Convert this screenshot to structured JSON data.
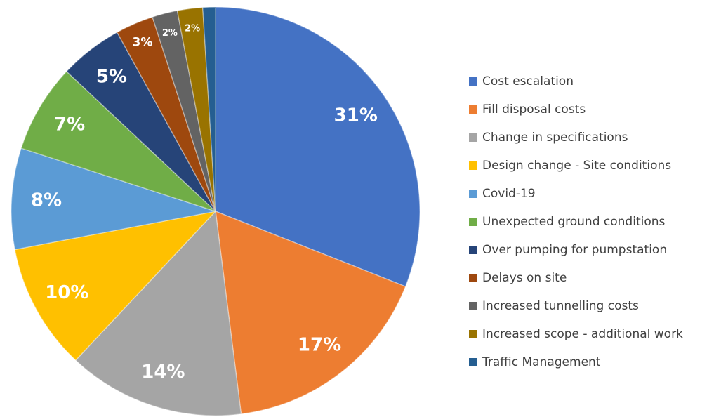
{
  "chart_data": {
    "type": "pie",
    "categories": [
      "Cost escalation",
      "Fill disposal costs",
      "Change in specifications",
      "Design change - Site conditions",
      "Covid-19",
      "Unexpected ground conditions",
      "Over pumping for pumpstation",
      "Delays on site",
      "Increased tunnelling costs",
      "Increased scope - additional work",
      "Traffic Management"
    ],
    "values": [
      31,
      17,
      14,
      10,
      8,
      7,
      5,
      3,
      2,
      2,
      1
    ],
    "value_labels": [
      "31%",
      "17%",
      "14%",
      "10%",
      "8%",
      "7%",
      "5%",
      "3%",
      "2%",
      "2%",
      null
    ],
    "colors": [
      "#4472c4",
      "#ed7d31",
      "#a5a5a5",
      "#ffc000",
      "#5b9bd5",
      "#70ad47",
      "#264478",
      "#9e480e",
      "#636363",
      "#997300",
      "#255e91"
    ],
    "legend": "right"
  }
}
